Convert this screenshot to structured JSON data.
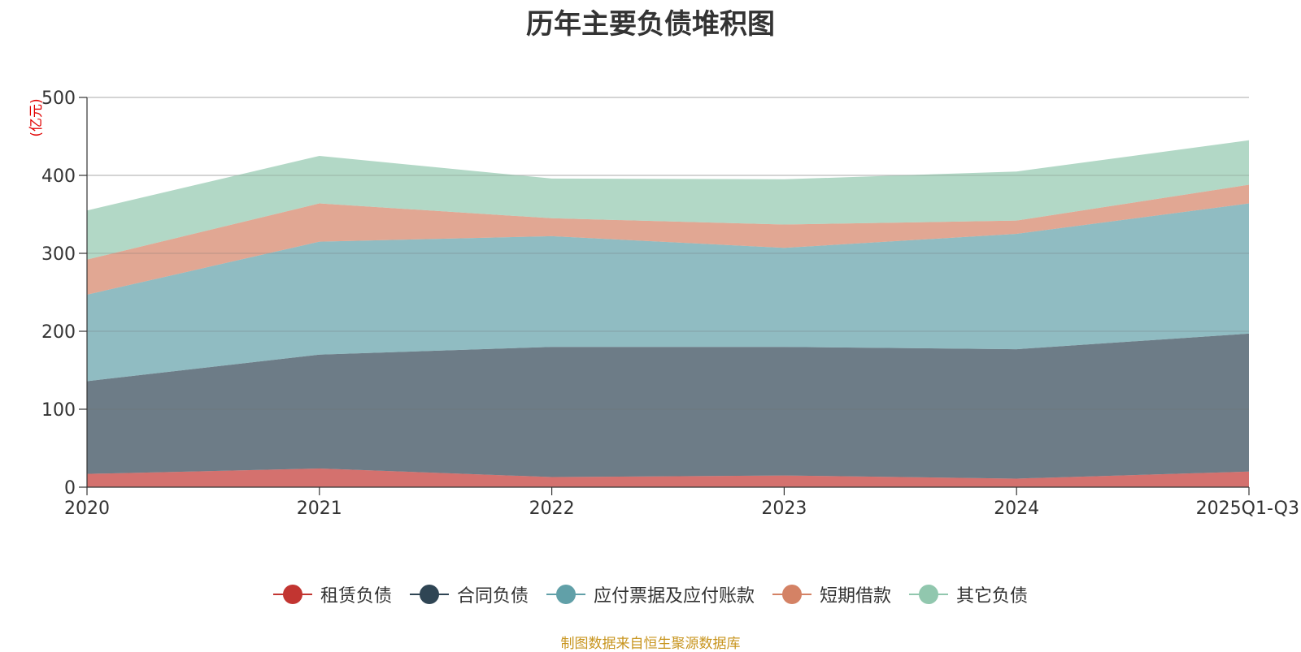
{
  "chart_data": {
    "type": "area",
    "stacked": true,
    "title": "历年主要负债堆积图",
    "ylabel": "(亿元)",
    "xlabel": "",
    "ylim": [
      0,
      500
    ],
    "yticks": [
      0,
      100,
      200,
      300,
      400,
      500
    ],
    "categories": [
      "2020",
      "2021",
      "2022",
      "2023",
      "2024",
      "2025Q1-Q3"
    ],
    "grid": true,
    "legend_position": "bottom",
    "series": [
      {
        "name": "租赁负债",
        "color": "#c23531",
        "values": [
          17,
          24,
          13,
          15,
          11,
          20
        ]
      },
      {
        "name": "合同负债",
        "color": "#2f4554",
        "values": [
          119,
          146,
          167,
          165,
          166,
          177
        ]
      },
      {
        "name": "应付票据及应付账款",
        "color": "#61a0a8",
        "values": [
          111,
          145,
          142,
          127,
          148,
          167
        ]
      },
      {
        "name": "短期借款",
        "color": "#d48265",
        "values": [
          45,
          49,
          23,
          30,
          17,
          24
        ]
      },
      {
        "name": "其它负债",
        "color": "#91c7ae",
        "values": [
          63,
          61,
          51,
          58,
          63,
          57
        ]
      }
    ]
  },
  "source": "制图数据来自恒生聚源数据库"
}
